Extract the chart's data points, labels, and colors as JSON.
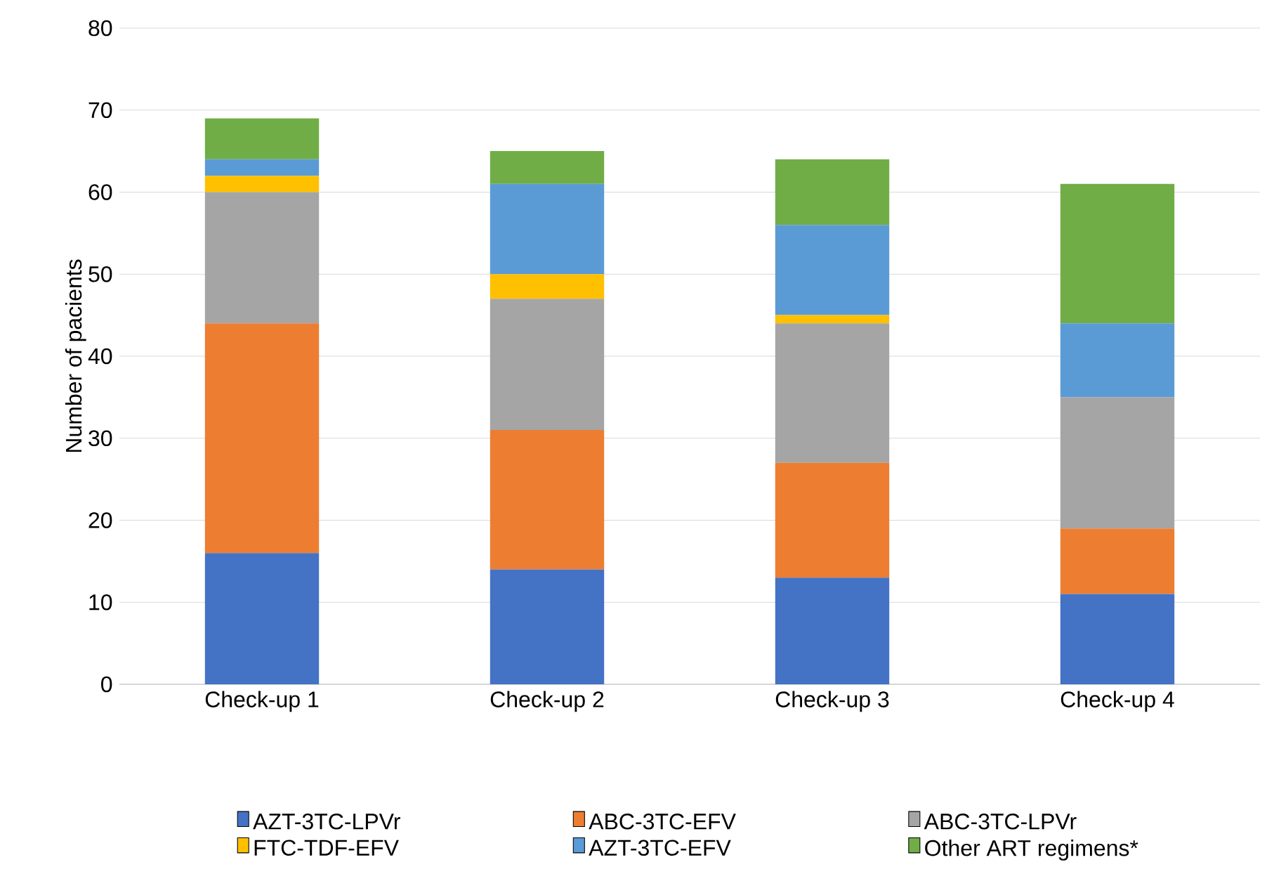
{
  "chart_data": {
    "type": "bar",
    "stacked": true,
    "ylabel": "Number of pacients",
    "categories": [
      "Check-up 1",
      "Check-up 2",
      "Check-up 3",
      "Check-up 4"
    ],
    "series": [
      {
        "name": "AZT-3TC-LPVr",
        "color": "#4472c4",
        "values": [
          16,
          14,
          13,
          11
        ]
      },
      {
        "name": "ABC-3TC-EFV",
        "color": "#ed7d31",
        "values": [
          28,
          17,
          14,
          8
        ]
      },
      {
        "name": "ABC-3TC-LPVr",
        "color": "#a5a5a5",
        "values": [
          16,
          16,
          17,
          16
        ]
      },
      {
        "name": "FTC-TDF-EFV",
        "color": "#ffc000",
        "values": [
          2,
          3,
          1,
          0
        ]
      },
      {
        "name": "AZT-3TC-EFV",
        "color": "#5b9bd5",
        "values": [
          2,
          11,
          11,
          9
        ]
      },
      {
        "name": "Other ART regimens*",
        "color": "#70ad47",
        "values": [
          5,
          4,
          8,
          17
        ]
      }
    ],
    "ylim": [
      0,
      80
    ],
    "yticks": [
      0,
      10,
      20,
      30,
      40,
      50,
      60,
      70,
      80
    ],
    "grid": "y",
    "legend": "bottom"
  }
}
